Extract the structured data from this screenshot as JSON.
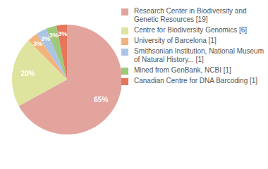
{
  "chart_data": {
    "type": "pie",
    "categories": [
      "Research Center in Biodiversity and Genetic Resources [19]",
      "Centre for Biodiversity Genomics [6]",
      "University of Barcelona [1]",
      "Smithsonian Institution, National Museum of Natural History... [1]",
      "Mined from GenBank, NCBI [1]",
      "Canadian Centre for DNA Barcoding [1]"
    ],
    "values": [
      65,
      20,
      3,
      3,
      3,
      3
    ],
    "value_labels": [
      "65%",
      "20%",
      "3%",
      "3%",
      "3%",
      "3%"
    ],
    "data_labels": true,
    "legend": "right",
    "colors": [
      "#e2a49d",
      "#dee49e",
      "#f3b37c",
      "#abc4e6",
      "#9fc97a",
      "#e4765b"
    ]
  }
}
